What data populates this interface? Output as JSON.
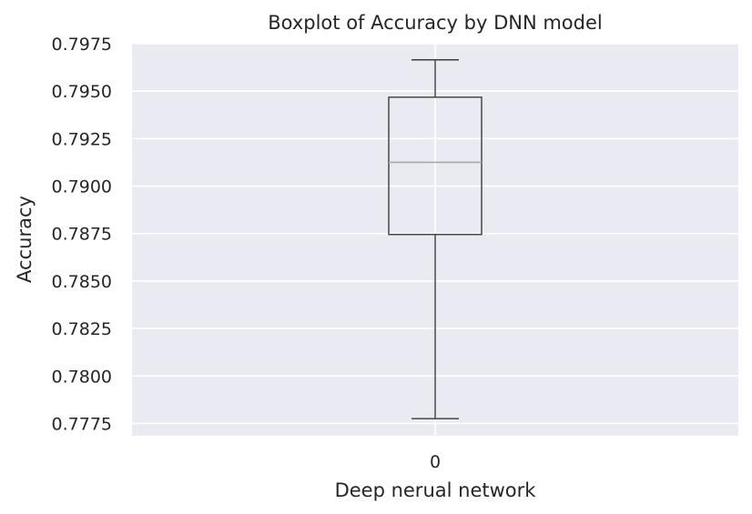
{
  "chart_data": {
    "type": "box",
    "title": "Boxplot of Accuracy by DNN model",
    "xlabel": "Deep nerual network",
    "ylabel": "Accuracy",
    "categories": [
      "0"
    ],
    "boxes": [
      {
        "category": "0",
        "whisker_low": 0.77775,
        "q1": 0.78745,
        "median": 0.79125,
        "q3": 0.79468,
        "whisker_high": 0.79665
      }
    ],
    "yticks": [
      "0.7775",
      "0.7800",
      "0.7825",
      "0.7850",
      "0.7875",
      "0.7900",
      "0.7925",
      "0.7950",
      "0.7975"
    ],
    "ylim": [
      0.77685,
      0.7975
    ],
    "grid": true,
    "colors": {
      "background": "#eaeaf2",
      "grid": "#ffffff",
      "box": "#3d3d3d",
      "median": "#a8a8a8",
      "text": "#262626"
    }
  }
}
